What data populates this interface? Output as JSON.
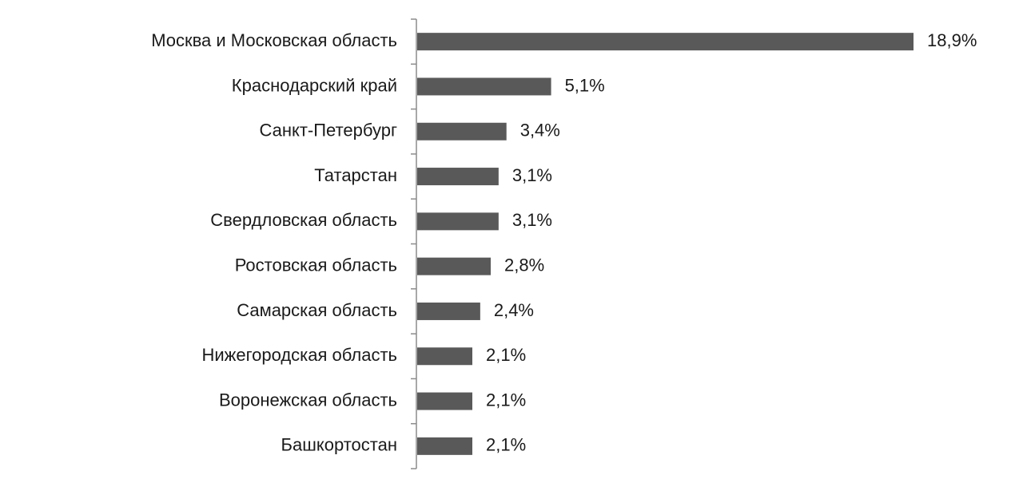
{
  "chart_data": {
    "type": "bar",
    "orientation": "horizontal",
    "categories": [
      "Москва и Московская область",
      "Краснодарский край",
      "Санкт-Петербург",
      "Татарстан",
      "Свердловская область",
      "Ростовская область",
      "Самарская область",
      "Нижегородская область",
      "Воронежская область",
      "Башкортостан"
    ],
    "values": [
      18.9,
      5.1,
      3.4,
      3.1,
      3.1,
      2.8,
      2.4,
      2.1,
      2.1,
      2.1
    ],
    "value_labels": [
      "18,9%",
      "5,1%",
      "3,4%",
      "3,1%",
      "3,1%",
      "2,8%",
      "2,4%",
      "2,1%",
      "2,1%",
      "2,1%"
    ],
    "color": "#595959"
  }
}
